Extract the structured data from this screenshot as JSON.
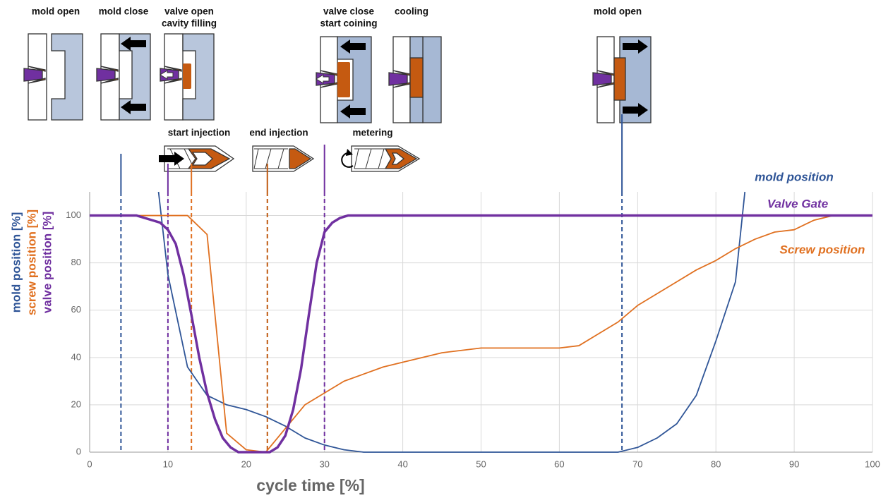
{
  "chart_data": {
    "type": "line",
    "xlabel": "cycle time [%]",
    "ylabels": [
      "mold position [%]",
      "screw position [%]",
      "valve position [%]"
    ],
    "xlim": [
      0,
      100
    ],
    "ylim": [
      0,
      110
    ],
    "xticks": [
      0,
      10,
      20,
      30,
      40,
      50,
      60,
      70,
      80,
      90,
      100
    ],
    "yticks": [
      0,
      20,
      40,
      60,
      80,
      100
    ],
    "grid": true,
    "series": [
      {
        "name": "mold position",
        "color": "#2f5597",
        "width": 1.8,
        "x": [
          8.8,
          10,
          12.5,
          15,
          17.5,
          20,
          22.5,
          25,
          27.5,
          30,
          32.5,
          35,
          67.5,
          70,
          72.5,
          75,
          77.5,
          80,
          82.5,
          83.7
        ],
        "values": [
          110,
          75,
          36,
          24,
          20,
          18,
          15,
          11,
          6,
          3,
          1,
          0,
          0,
          2,
          6,
          12,
          24,
          47,
          72,
          110
        ]
      },
      {
        "name": "Screw position",
        "color": "#e07020",
        "width": 1.8,
        "x": [
          0,
          12.5,
          15,
          17.5,
          20,
          22.5,
          25,
          27.5,
          30,
          32.5,
          35,
          37.5,
          40,
          45,
          50,
          55,
          60,
          62.5,
          65,
          67.5,
          70,
          72.5,
          75,
          77.5,
          80,
          82.5,
          85,
          87.5,
          90,
          92.5,
          95,
          100
        ],
        "values": [
          100,
          100,
          92,
          8,
          1,
          0,
          10,
          20,
          25,
          30,
          33,
          36,
          38,
          42,
          44,
          44,
          44,
          45,
          50,
          55,
          62,
          67,
          72,
          77,
          81,
          86,
          90,
          93,
          94,
          98,
          100,
          100
        ]
      },
      {
        "name": "Valve Gate",
        "color": "#7030a0",
        "width": 3.5,
        "x": [
          0,
          4,
          6,
          8,
          9,
          10,
          11,
          12,
          13,
          14,
          15,
          16,
          17,
          18,
          19,
          20,
          22,
          23,
          24,
          25,
          26,
          27,
          28,
          29,
          30,
          31,
          32,
          33,
          36,
          100
        ],
        "values": [
          100,
          100,
          100,
          98,
          97,
          94,
          88,
          75,
          58,
          40,
          25,
          14,
          6,
          2,
          0,
          0,
          0,
          0,
          2,
          7,
          18,
          35,
          58,
          80,
          93,
          97,
          99,
          100,
          100,
          100
        ]
      }
    ],
    "vlines": [
      {
        "x": 4,
        "color": "#2f5597"
      },
      {
        "x": 10,
        "color": "#7030a0"
      },
      {
        "x": 13,
        "color": "#e07020"
      },
      {
        "x": 22.7,
        "color": "#c05a10"
      },
      {
        "x": 30,
        "color": "#7030a0"
      },
      {
        "x": 68,
        "color": "#2f5597"
      }
    ],
    "phases": [
      [
        "mold open"
      ],
      [
        "mold close"
      ],
      [
        "valve open",
        "cavity filling"
      ],
      [
        "valve close",
        "start coining"
      ],
      [
        "cooling"
      ],
      [
        "mold open"
      ]
    ],
    "screw_phases": [
      "start injection",
      "end injection",
      "metering"
    ]
  }
}
